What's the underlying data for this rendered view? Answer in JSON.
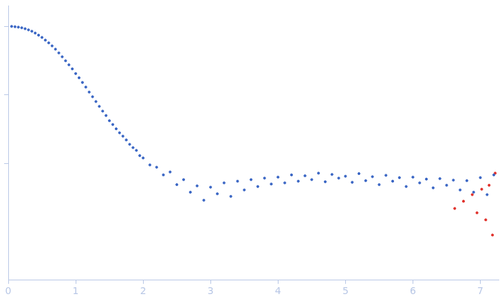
{
  "chart_data": {
    "type": "scatter",
    "log": "y",
    "grid": false,
    "tick_labels": "x",
    "marker": "circle",
    "xlim": [
      0,
      7.27
    ],
    "xticks": [
      0,
      1,
      2,
      3,
      4,
      5,
      6,
      7
    ],
    "ylim": [
      0.0002,
      2
    ],
    "yticks": [
      0.01,
      0.1,
      1
    ],
    "series": [
      {
        "color": "#3a66c4",
        "x": [
          0.05,
          0.1,
          0.15,
          0.2,
          0.25,
          0.3,
          0.35,
          0.4,
          0.45,
          0.5,
          0.55,
          0.6,
          0.65,
          0.7,
          0.75,
          0.8,
          0.85,
          0.9,
          0.95,
          1.0,
          1.05,
          1.1,
          1.15,
          1.2,
          1.25,
          1.3,
          1.35,
          1.4,
          1.45,
          1.5,
          1.55,
          1.6,
          1.65,
          1.7,
          1.75,
          1.8,
          1.85,
          1.9,
          1.95,
          2.0,
          2.1,
          2.2,
          2.3,
          2.4,
          2.5,
          2.6,
          2.7,
          2.8,
          2.9,
          3.0,
          3.1,
          3.2,
          3.3,
          3.4,
          3.5,
          3.6,
          3.7,
          3.8,
          3.9,
          4.0,
          4.1,
          4.2,
          4.3,
          4.4,
          4.5,
          4.6,
          4.7,
          4.8,
          4.9,
          5.0,
          5.1,
          5.2,
          5.3,
          5.4,
          5.5,
          5.6,
          5.7,
          5.8,
          5.9,
          6.0,
          6.1,
          6.2,
          6.3,
          6.4,
          6.5,
          6.6,
          6.7,
          6.8,
          6.9,
          7.0,
          7.1,
          7.2
        ],
        "values": [
          1.0,
          0.99,
          0.975,
          0.955,
          0.925,
          0.89,
          0.85,
          0.8,
          0.745,
          0.69,
          0.63,
          0.575,
          0.52,
          0.465,
          0.41,
          0.36,
          0.315,
          0.275,
          0.24,
          0.205,
          0.178,
          0.152,
          0.13,
          0.11,
          0.094,
          0.08,
          0.068,
          0.058,
          0.05,
          0.042,
          0.037,
          0.032,
          0.028,
          0.025,
          0.022,
          0.019,
          0.017,
          0.0155,
          0.013,
          0.012,
          0.0095,
          0.0088,
          0.0068,
          0.0075,
          0.0049,
          0.0058,
          0.0038,
          0.0047,
          0.0029,
          0.0045,
          0.0036,
          0.0052,
          0.0033,
          0.0055,
          0.0041,
          0.0058,
          0.0046,
          0.0061,
          0.005,
          0.0063,
          0.0052,
          0.0068,
          0.0055,
          0.0066,
          0.0058,
          0.0072,
          0.0054,
          0.0069,
          0.0061,
          0.0065,
          0.0053,
          0.0071,
          0.0056,
          0.0064,
          0.0049,
          0.0067,
          0.0055,
          0.0062,
          0.0046,
          0.0063,
          0.0052,
          0.0059,
          0.0044,
          0.006,
          0.0048,
          0.0057,
          0.0041,
          0.0056,
          0.0038,
          0.0062,
          0.0035,
          0.0068
        ]
      },
      {
        "color": "#e0302a",
        "x": [
          6.62,
          6.75,
          6.88,
          6.95,
          7.02,
          7.08,
          7.13,
          7.18,
          7.22
        ],
        "values": [
          0.0022,
          0.0028,
          0.0035,
          0.0019,
          0.0042,
          0.0015,
          0.0048,
          0.0009,
          0.0072
        ]
      }
    ]
  }
}
